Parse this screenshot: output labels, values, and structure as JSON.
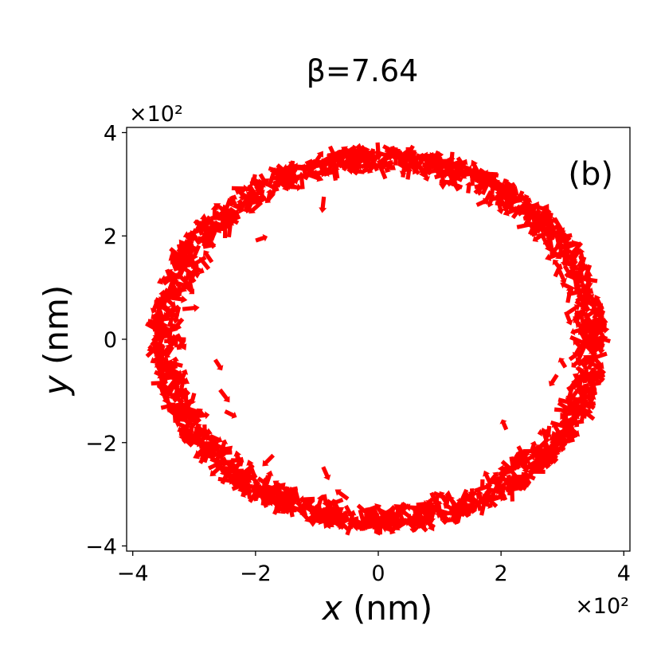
{
  "chart_data": {
    "type": "scatter",
    "title": "β=7.64",
    "xlabel": "x (nm)",
    "ylabel": "y (nm)",
    "x_offset_text": "×10²",
    "y_offset_text": "×10²",
    "annotation": "(b)",
    "xlim": [
      -4.1,
      4.1
    ],
    "ylim": [
      -4.1,
      4.1
    ],
    "xticks": [
      -4,
      -2,
      0,
      2,
      4
    ],
    "yticks": [
      -4,
      -2,
      0,
      2,
      4
    ],
    "xtick_labels": [
      "−4",
      "−2",
      "0",
      "2",
      "4"
    ],
    "ytick_labels": [
      "−4",
      "−2",
      "0",
      "2",
      "4"
    ],
    "grid": false,
    "marker": "arrow",
    "color": "#ff0000",
    "ring": {
      "center": [
        0.0,
        0.0
      ],
      "inner_radius": 3.2,
      "outer_radius": 3.7
    },
    "interior_points": [
      [
        -0.9,
        2.6
      ],
      [
        -1.9,
        1.95
      ],
      [
        -2.6,
        -0.5
      ],
      [
        -2.5,
        -1.1
      ],
      [
        -2.4,
        -1.45
      ],
      [
        -1.8,
        -2.35
      ],
      [
        -0.85,
        -2.6
      ],
      [
        -0.6,
        -3.0
      ],
      [
        3.0,
        -0.45
      ],
      [
        2.85,
        -0.8
      ],
      [
        3.1,
        0.4
      ],
      [
        2.05,
        -1.65
      ],
      [
        1.7,
        2.65
      ],
      [
        2.55,
        2.2
      ],
      [
        -3.05,
        0.6
      ]
    ]
  }
}
